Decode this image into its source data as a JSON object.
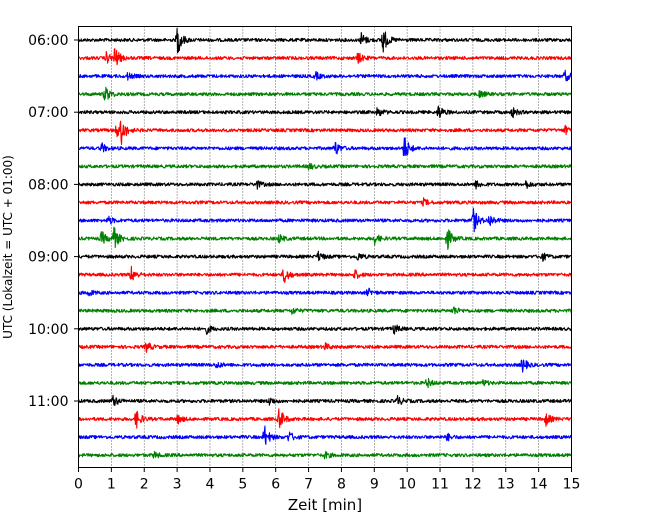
{
  "chart_data": {
    "type": "line",
    "title": "",
    "xlabel": "Zeit  [min]",
    "ylabel": "UTC (Lokalzeit = UTC + 01:00)",
    "xlim": [
      0,
      15
    ],
    "x_ticks": [
      "0",
      "1",
      "2",
      "3",
      "4",
      "5",
      "6",
      "7",
      "8",
      "9",
      "10",
      "11",
      "12",
      "13",
      "14",
      "15"
    ],
    "y_tick_labels": [
      "06:00",
      "07:00",
      "08:00",
      "09:00",
      "10:00",
      "11:00"
    ],
    "grid": "vertical dotted lines at each minute",
    "trace_colors": [
      "#000000",
      "#ff0000",
      "#0000ff",
      "#008000"
    ],
    "traces": [
      {
        "start": "06:00",
        "color": "#000000",
        "events": [
          {
            "t": 3.0,
            "amp": 1.0
          },
          {
            "t": 8.6,
            "amp": 0.45
          },
          {
            "t": 9.25,
            "amp": 0.9
          }
        ]
      },
      {
        "start": "06:15",
        "color": "#ff0000",
        "events": [
          {
            "t": 1.1,
            "amp": 0.7
          },
          {
            "t": 0.85,
            "amp": 0.35
          },
          {
            "t": 8.5,
            "amp": 0.35
          }
        ]
      },
      {
        "start": "06:30",
        "color": "#0000ff",
        "events": [
          {
            "t": 14.8,
            "amp": 0.35
          },
          {
            "t": 7.2,
            "amp": 0.25
          },
          {
            "t": 1.5,
            "amp": 0.2
          }
        ]
      },
      {
        "start": "06:45",
        "color": "#008000",
        "events": [
          {
            "t": 0.8,
            "amp": 0.55
          },
          {
            "t": 12.2,
            "amp": 0.25
          }
        ]
      },
      {
        "start": "07:00",
        "color": "#000000",
        "events": [
          {
            "t": 10.95,
            "amp": 0.45
          },
          {
            "t": 9.1,
            "amp": 0.3
          },
          {
            "t": 13.2,
            "amp": 0.3
          }
        ]
      },
      {
        "start": "07:15",
        "color": "#ff0000",
        "events": [
          {
            "t": 1.3,
            "amp": 0.75
          },
          {
            "t": 1.15,
            "amp": 0.45
          },
          {
            "t": 14.8,
            "amp": 0.25
          }
        ]
      },
      {
        "start": "07:30",
        "color": "#0000ff",
        "events": [
          {
            "t": 9.9,
            "amp": 0.9
          },
          {
            "t": 7.8,
            "amp": 0.5
          },
          {
            "t": 0.7,
            "amp": 0.3
          }
        ]
      },
      {
        "start": "07:45",
        "color": "#008000",
        "events": [
          {
            "t": 7.0,
            "amp": 0.2
          }
        ]
      },
      {
        "start": "08:00",
        "color": "#000000",
        "events": [
          {
            "t": 5.4,
            "amp": 0.3
          },
          {
            "t": 12.1,
            "amp": 0.25
          },
          {
            "t": 13.6,
            "amp": 0.25
          }
        ]
      },
      {
        "start": "08:15",
        "color": "#ff0000",
        "events": [
          {
            "t": 10.5,
            "amp": 0.2
          }
        ]
      },
      {
        "start": "08:30",
        "color": "#0000ff",
        "events": [
          {
            "t": 12.0,
            "amp": 0.85
          },
          {
            "t": 12.5,
            "amp": 0.4
          },
          {
            "t": 0.9,
            "amp": 0.25
          }
        ]
      },
      {
        "start": "08:45",
        "color": "#008000",
        "events": [
          {
            "t": 1.05,
            "amp": 0.85
          },
          {
            "t": 0.7,
            "amp": 0.45
          },
          {
            "t": 11.2,
            "amp": 0.8
          },
          {
            "t": 9.0,
            "amp": 0.35
          },
          {
            "t": 6.1,
            "amp": 0.25
          }
        ]
      },
      {
        "start": "09:00",
        "color": "#000000",
        "events": [
          {
            "t": 7.3,
            "amp": 0.3
          },
          {
            "t": 14.1,
            "amp": 0.25
          },
          {
            "t": 8.5,
            "amp": 0.25
          }
        ]
      },
      {
        "start": "09:15",
        "color": "#ff0000",
        "events": [
          {
            "t": 6.25,
            "amp": 0.6
          },
          {
            "t": 1.6,
            "amp": 0.5
          },
          {
            "t": 8.4,
            "amp": 0.3
          }
        ]
      },
      {
        "start": "09:30",
        "color": "#0000ff",
        "events": [
          {
            "t": 8.8,
            "amp": 0.25
          },
          {
            "t": 0.3,
            "amp": 0.2
          }
        ]
      },
      {
        "start": "09:45",
        "color": "#008000",
        "events": [
          {
            "t": 11.4,
            "amp": 0.3
          },
          {
            "t": 6.5,
            "amp": 0.2
          }
        ]
      },
      {
        "start": "10:00",
        "color": "#000000",
        "events": [
          {
            "t": 9.6,
            "amp": 0.3
          },
          {
            "t": 3.9,
            "amp": 0.25
          }
        ]
      },
      {
        "start": "10:15",
        "color": "#ff0000",
        "events": [
          {
            "t": 2.05,
            "amp": 0.35
          },
          {
            "t": 7.5,
            "amp": 0.2
          }
        ]
      },
      {
        "start": "10:30",
        "color": "#0000ff",
        "events": [
          {
            "t": 13.5,
            "amp": 0.45
          },
          {
            "t": 4.2,
            "amp": 0.2
          }
        ]
      },
      {
        "start": "10:45",
        "color": "#008000",
        "events": [
          {
            "t": 10.6,
            "amp": 0.3
          },
          {
            "t": 12.3,
            "amp": 0.2
          }
        ]
      },
      {
        "start": "11:00",
        "color": "#000000",
        "events": [
          {
            "t": 1.05,
            "amp": 0.35
          },
          {
            "t": 9.7,
            "amp": 0.3
          },
          {
            "t": 5.8,
            "amp": 0.25
          }
        ]
      },
      {
        "start": "11:15",
        "color": "#ff0000",
        "events": [
          {
            "t": 6.1,
            "amp": 0.75
          },
          {
            "t": 1.75,
            "amp": 0.6
          },
          {
            "t": 14.2,
            "amp": 0.45
          },
          {
            "t": 3.0,
            "amp": 0.3
          }
        ]
      },
      {
        "start": "11:30",
        "color": "#0000ff",
        "events": [
          {
            "t": 5.65,
            "amp": 0.75
          },
          {
            "t": 6.4,
            "amp": 0.35
          },
          {
            "t": 11.2,
            "amp": 0.25
          }
        ]
      },
      {
        "start": "11:45",
        "color": "#008000",
        "events": [
          {
            "t": 7.5,
            "amp": 0.2
          },
          {
            "t": 2.3,
            "amp": 0.2
          }
        ]
      }
    ]
  }
}
